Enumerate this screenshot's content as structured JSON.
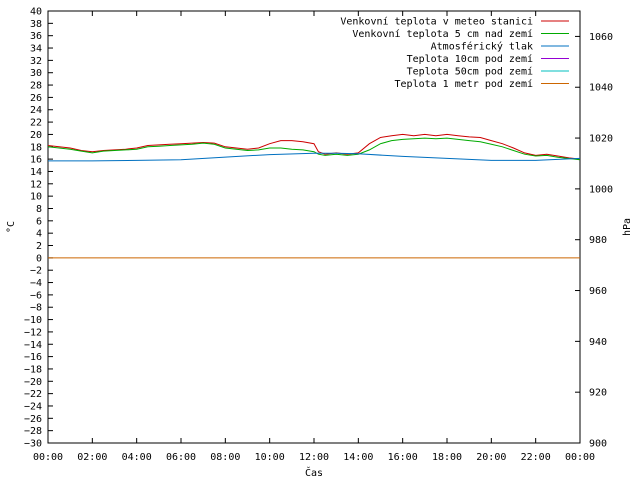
{
  "chart_data": {
    "type": "line",
    "xlabel": "Čas",
    "ylabel": "°C",
    "y2label": "hPa",
    "xlim": [
      0,
      24
    ],
    "ylim": [
      -30,
      40
    ],
    "y2lim": [
      900,
      1070
    ],
    "x_ticks": [
      "00:00",
      "02:00",
      "04:00",
      "06:00",
      "08:00",
      "10:00",
      "12:00",
      "14:00",
      "16:00",
      "18:00",
      "20:00",
      "22:00",
      "00:00"
    ],
    "y_ticks": [
      "40",
      "38",
      "36",
      "34",
      "32",
      "30",
      "28",
      "26",
      "24",
      "22",
      "20",
      "18",
      "16",
      "14",
      "12",
      "10",
      "8",
      "6",
      "4",
      "2",
      "0",
      "−2",
      "−4",
      "−6",
      "−8",
      "−10",
      "−12",
      "−14",
      "−16",
      "−18",
      "−20",
      "−22",
      "−24",
      "−26",
      "−28",
      "−30"
    ],
    "y2_ticks": [
      "1060",
      "1040",
      "1020",
      "1000",
      "980",
      "960",
      "940",
      "920",
      "900"
    ],
    "legend_position": "top-right",
    "grid": false,
    "series": [
      {
        "name": "Venkovní teplota v meteo stanici",
        "color": "#cc0000",
        "axis": "left",
        "x": [
          0,
          0.5,
          1,
          1.5,
          2,
          2.5,
          3,
          3.5,
          4,
          4.5,
          5,
          5.5,
          6,
          6.5,
          7,
          7.5,
          8,
          8.5,
          9,
          9.5,
          10,
          10.5,
          11,
          11.5,
          12,
          12.2,
          12.5,
          13,
          13.5,
          14,
          14.5,
          15,
          15.5,
          16,
          16.5,
          17,
          17.5,
          18,
          18.5,
          19,
          19.5,
          20,
          20.5,
          21,
          21.5,
          22,
          22.5,
          23,
          23.5,
          24
        ],
        "values": [
          18.2,
          18.0,
          17.8,
          17.4,
          17.2,
          17.4,
          17.5,
          17.6,
          17.8,
          18.2,
          18.3,
          18.4,
          18.5,
          18.6,
          18.7,
          18.6,
          18.0,
          17.8,
          17.6,
          17.8,
          18.5,
          19.0,
          19.0,
          18.8,
          18.5,
          17.2,
          16.8,
          17.0,
          16.8,
          17.0,
          18.5,
          19.5,
          19.8,
          20.0,
          19.8,
          20.0,
          19.8,
          20.0,
          19.8,
          19.6,
          19.5,
          19.0,
          18.5,
          17.8,
          17.0,
          16.6,
          16.8,
          16.5,
          16.2,
          16.0
        ]
      },
      {
        "name": "Venkovní teplota 5 cm nad zemí",
        "color": "#00aa00",
        "axis": "left",
        "x": [
          0,
          0.5,
          1,
          1.5,
          2,
          2.5,
          3,
          3.5,
          4,
          4.5,
          5,
          5.5,
          6,
          6.5,
          7,
          7.5,
          8,
          8.5,
          9,
          9.5,
          10,
          10.5,
          11,
          11.5,
          12,
          12.2,
          12.5,
          13,
          13.5,
          14,
          14.5,
          15,
          15.5,
          16,
          16.5,
          17,
          17.5,
          18,
          18.5,
          19,
          19.5,
          20,
          20.5,
          21,
          21.5,
          22,
          22.5,
          23,
          23.5,
          24
        ],
        "values": [
          18.0,
          17.8,
          17.6,
          17.3,
          17.0,
          17.3,
          17.4,
          17.5,
          17.6,
          18.0,
          18.1,
          18.2,
          18.3,
          18.4,
          18.6,
          18.4,
          17.8,
          17.6,
          17.4,
          17.5,
          17.8,
          17.8,
          17.6,
          17.5,
          17.2,
          16.8,
          16.6,
          16.8,
          16.6,
          16.8,
          17.5,
          18.5,
          19.0,
          19.2,
          19.3,
          19.4,
          19.3,
          19.4,
          19.2,
          19.0,
          18.8,
          18.4,
          18.0,
          17.4,
          16.8,
          16.5,
          16.6,
          16.3,
          16.1,
          15.9
        ]
      },
      {
        "name": "Atmosférický tlak",
        "color": "#0070c0",
        "axis": "right",
        "x": [
          0,
          2,
          4,
          6,
          8,
          10,
          12,
          13,
          14,
          16,
          18,
          20,
          22,
          24
        ],
        "values": [
          1011.0,
          1011.0,
          1011.2,
          1011.5,
          1012.5,
          1013.5,
          1014.0,
          1014.0,
          1013.8,
          1012.8,
          1012.0,
          1011.2,
          1011.2,
          1012.0
        ]
      },
      {
        "name": "Teplota 10cm pod zemí",
        "color": "#9400d3",
        "axis": "left",
        "x": [],
        "values": []
      },
      {
        "name": "Teplota 50cm pod zemí",
        "color": "#00bfbf",
        "axis": "left",
        "x": [],
        "values": []
      },
      {
        "name": "Teplota 1 metr pod zemí",
        "color": "#cc6600",
        "axis": "left",
        "x": [
          0,
          24
        ],
        "values": [
          0,
          0
        ]
      }
    ]
  }
}
